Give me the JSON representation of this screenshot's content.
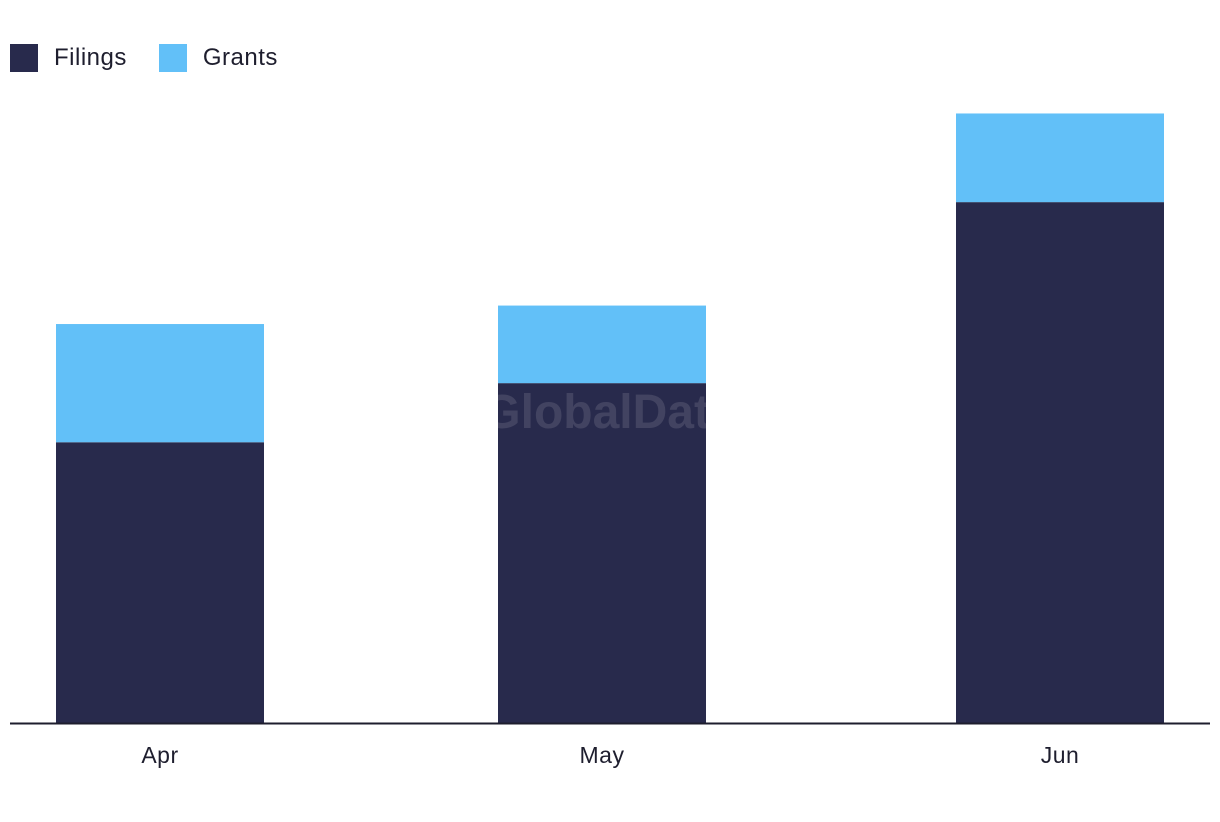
{
  "chart_data": {
    "type": "bar",
    "stacked": true,
    "categories": [
      "Apr",
      "May",
      "Jun"
    ],
    "series": [
      {
        "name": "Filings",
        "color": "#282a4c",
        "values": [
          76,
          92,
          141
        ]
      },
      {
        "name": "Grants",
        "color": "#62c0f8",
        "values": [
          32,
          21,
          24
        ]
      }
    ],
    "title": "",
    "xlabel": "",
    "ylabel": "",
    "ylim": [
      0,
      170
    ],
    "grid": false,
    "legend_position": "top-left"
  },
  "watermark": "GlobalData"
}
